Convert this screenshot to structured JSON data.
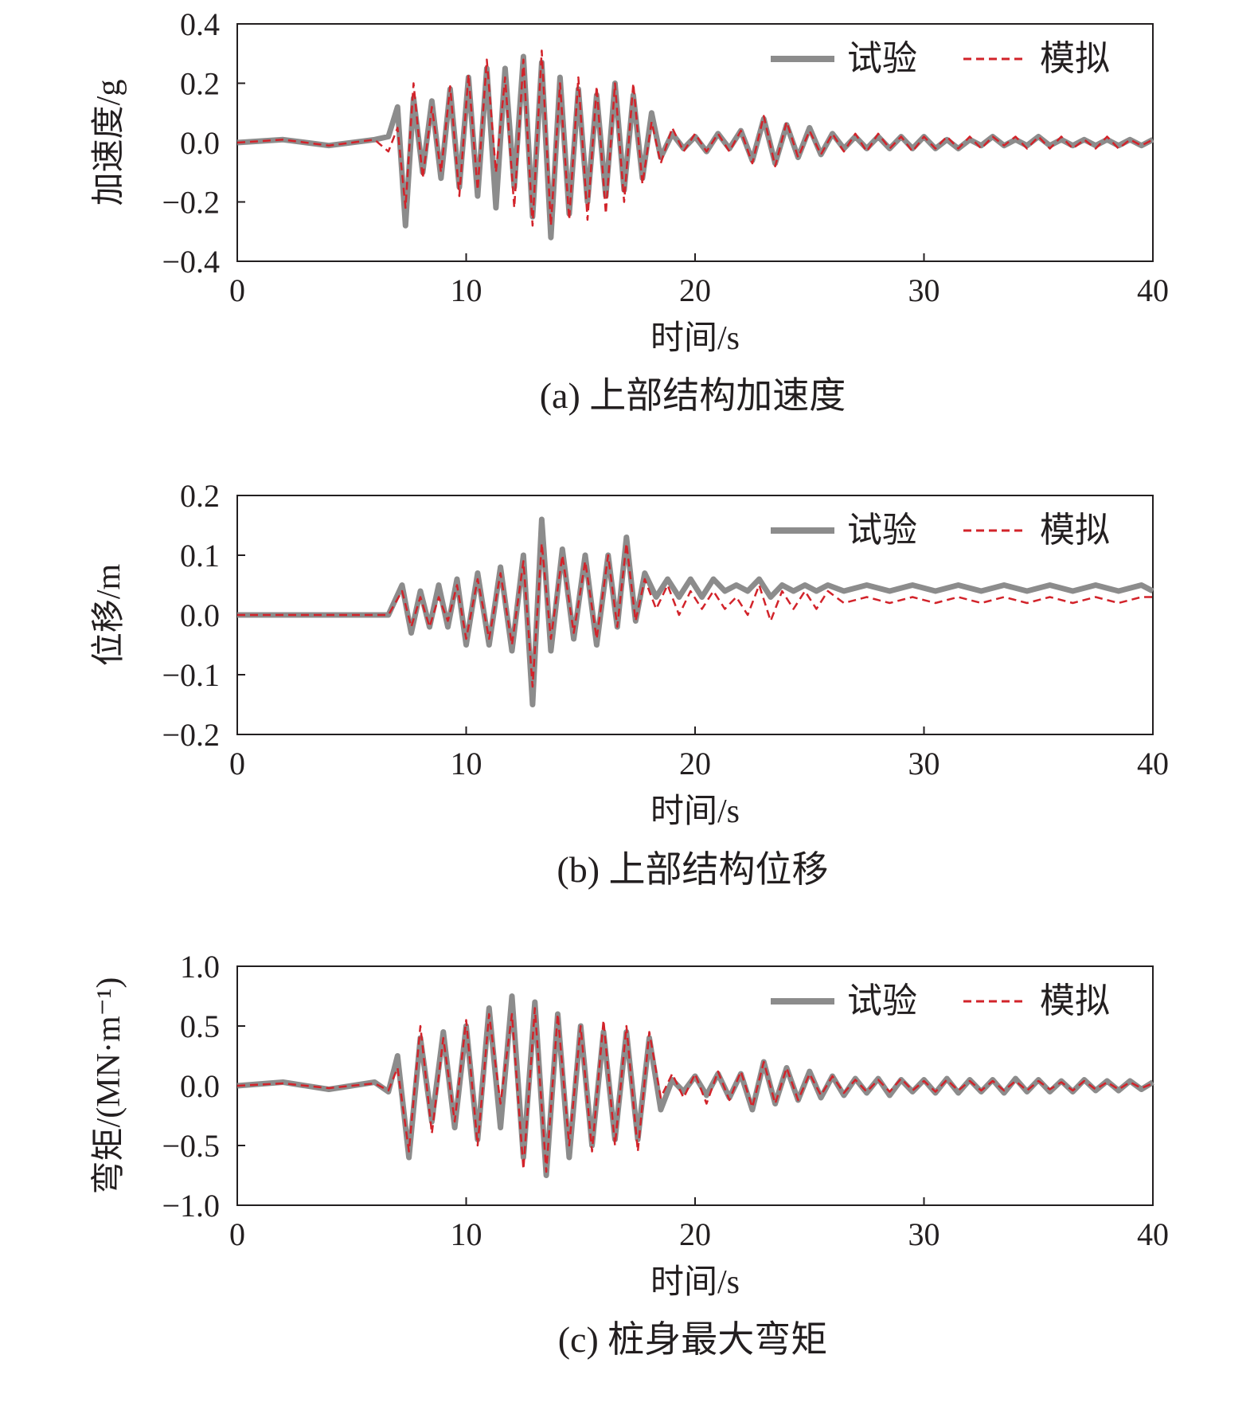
{
  "colors": {
    "experiment": "#8c8c8c",
    "simulation": "#d2232a",
    "axis": "#231f20"
  },
  "legend": {
    "experiment": "试验",
    "simulation": "模拟"
  },
  "chart_data": [
    {
      "id": "a",
      "type": "line",
      "caption": "(a) 上部结构加速度",
      "xlabel": "时间/s",
      "ylabel": "加速度/g",
      "xlim": [
        0,
        40
      ],
      "ylim": [
        -0.4,
        0.4
      ],
      "xticks": [
        "0",
        "10",
        "20",
        "30",
        "40"
      ],
      "yticks": [
        "−0.4",
        "−0.2",
        "0.0",
        "0.2",
        "0.4"
      ],
      "legend_position": "top-right",
      "series": [
        {
          "name": "试验",
          "x": [
            0,
            2,
            4,
            6,
            6.6,
            7.0,
            7.35,
            7.7,
            8.1,
            8.5,
            8.9,
            9.3,
            9.7,
            10.1,
            10.5,
            10.9,
            11.3,
            11.7,
            12.1,
            12.5,
            12.9,
            13.3,
            13.7,
            14.1,
            14.5,
            14.9,
            15.3,
            15.7,
            16.1,
            16.5,
            16.9,
            17.3,
            17.7,
            18.1,
            18.5,
            19,
            19.5,
            20,
            20.5,
            21,
            21.5,
            22,
            22.5,
            23,
            23.5,
            24,
            24.5,
            25,
            25.5,
            26,
            26.5,
            27,
            27.5,
            28,
            28.5,
            29,
            29.5,
            30,
            30.5,
            31,
            31.5,
            32,
            32.5,
            33,
            33.5,
            34,
            34.5,
            35,
            35.5,
            36,
            36.5,
            37,
            37.5,
            38,
            38.5,
            39,
            39.5,
            40
          ],
          "values": [
            0,
            0.01,
            -0.01,
            0.01,
            0.02,
            0.12,
            -0.28,
            0.15,
            -0.1,
            0.14,
            -0.12,
            0.18,
            -0.15,
            0.22,
            -0.18,
            0.25,
            -0.22,
            0.25,
            -0.15,
            0.29,
            -0.25,
            0.27,
            -0.32,
            0.22,
            -0.24,
            0.18,
            -0.2,
            0.16,
            -0.18,
            0.2,
            -0.16,
            0.16,
            -0.12,
            0.1,
            -0.05,
            0.03,
            -0.02,
            0.02,
            -0.03,
            0.03,
            -0.02,
            0.04,
            -0.06,
            0.08,
            -0.07,
            0.06,
            -0.05,
            0.05,
            -0.04,
            0.03,
            -0.02,
            0.02,
            -0.02,
            0.02,
            -0.02,
            0.02,
            -0.02,
            0.02,
            -0.02,
            0.01,
            -0.02,
            0.01,
            -0.01,
            0.02,
            -0.01,
            0.01,
            -0.01,
            0.02,
            -0.01,
            0.01,
            -0.01,
            0.01,
            -0.01,
            0.01,
            -0.01,
            0.01,
            -0.01,
            0.01
          ]
        },
        {
          "name": "模拟",
          "x": [
            0,
            2,
            4,
            6,
            6.6,
            7.0,
            7.35,
            7.7,
            8.1,
            8.5,
            8.9,
            9.3,
            9.7,
            10.1,
            10.5,
            10.9,
            11.3,
            11.7,
            12.1,
            12.5,
            12.9,
            13.3,
            13.7,
            14.1,
            14.5,
            14.9,
            15.3,
            15.7,
            16.1,
            16.5,
            16.9,
            17.3,
            17.7,
            18.1,
            18.5,
            19,
            19.5,
            20,
            20.5,
            21,
            21.5,
            22,
            22.5,
            23,
            23.5,
            24,
            24.5,
            25,
            25.5,
            26,
            26.5,
            27,
            27.5,
            28,
            28.5,
            29,
            29.5,
            30,
            30.5,
            31,
            31.5,
            32,
            32.5,
            33,
            33.5,
            34,
            34.5,
            35,
            35.5,
            36,
            36.5,
            37,
            37.5,
            38,
            38.5,
            39,
            39.5,
            40
          ],
          "values": [
            0,
            0.01,
            -0.01,
            0.01,
            -0.03,
            0.05,
            -0.22,
            0.2,
            -0.12,
            0.12,
            -0.1,
            0.19,
            -0.18,
            0.23,
            -0.16,
            0.28,
            -0.1,
            0.22,
            -0.22,
            0.28,
            -0.28,
            0.31,
            -0.28,
            0.2,
            -0.26,
            0.22,
            -0.26,
            0.19,
            -0.24,
            0.2,
            -0.2,
            0.2,
            -0.14,
            0.07,
            -0.07,
            0.05,
            -0.03,
            0.03,
            -0.03,
            0.03,
            -0.03,
            0.04,
            -0.07,
            0.09,
            -0.08,
            0.07,
            -0.05,
            0.04,
            -0.04,
            0.03,
            -0.03,
            0.03,
            -0.03,
            0.03,
            -0.02,
            0.02,
            -0.03,
            0.02,
            -0.02,
            0.02,
            -0.02,
            0.02,
            -0.02,
            0.02,
            -0.01,
            0.02,
            -0.02,
            0.02,
            -0.02,
            0.02,
            -0.02,
            0.01,
            -0.02,
            0.02,
            -0.02,
            0.01,
            -0.01,
            0.01
          ]
        }
      ]
    },
    {
      "id": "b",
      "type": "line",
      "caption": "(b) 上部结构位移",
      "xlabel": "时间/s",
      "ylabel": "位移/m",
      "xlim": [
        0,
        40
      ],
      "ylim": [
        -0.2,
        0.2
      ],
      "xticks": [
        "0",
        "10",
        "20",
        "30",
        "40"
      ],
      "yticks": [
        "−0.2",
        "−0.1",
        "0.0",
        "0.1",
        "0.2"
      ],
      "legend_position": "top-right",
      "series": [
        {
          "name": "试验",
          "x": [
            0,
            2,
            4,
            6,
            6.6,
            7.2,
            7.6,
            8.0,
            8.4,
            8.8,
            9.2,
            9.6,
            10.0,
            10.5,
            11.0,
            11.5,
            12.0,
            12.5,
            12.9,
            13.3,
            13.7,
            14.2,
            14.7,
            15.2,
            15.7,
            16.2,
            16.6,
            17.0,
            17.4,
            17.8,
            18.3,
            18.8,
            19.3,
            19.8,
            20.3,
            20.8,
            21.3,
            21.8,
            22.3,
            22.8,
            23.3,
            23.8,
            24.3,
            24.8,
            25.3,
            25.8,
            26.5,
            27.5,
            28.5,
            29.5,
            30.5,
            31.5,
            32.5,
            33.5,
            34.5,
            35.5,
            36.5,
            37.5,
            38.5,
            39.5,
            40
          ],
          "values": [
            0,
            0.0,
            0.0,
            0.0,
            0.0,
            0.05,
            -0.03,
            0.04,
            -0.02,
            0.05,
            -0.02,
            0.06,
            -0.05,
            0.07,
            -0.05,
            0.08,
            -0.06,
            0.1,
            -0.15,
            0.16,
            -0.06,
            0.11,
            -0.04,
            0.1,
            -0.05,
            0.1,
            -0.02,
            0.13,
            -0.01,
            0.07,
            0.03,
            0.06,
            0.03,
            0.06,
            0.03,
            0.06,
            0.04,
            0.05,
            0.04,
            0.06,
            0.03,
            0.05,
            0.04,
            0.05,
            0.04,
            0.05,
            0.04,
            0.05,
            0.04,
            0.05,
            0.04,
            0.05,
            0.04,
            0.05,
            0.04,
            0.05,
            0.04,
            0.05,
            0.04,
            0.05,
            0.04
          ]
        },
        {
          "name": "模拟",
          "x": [
            0,
            2,
            4,
            6,
            6.6,
            7.2,
            7.6,
            8.0,
            8.4,
            8.8,
            9.2,
            9.6,
            10.0,
            10.5,
            11.0,
            11.5,
            12.0,
            12.5,
            12.9,
            13.3,
            13.7,
            14.2,
            14.7,
            15.2,
            15.7,
            16.2,
            16.6,
            17.0,
            17.4,
            17.8,
            18.3,
            18.8,
            19.3,
            19.8,
            20.3,
            20.8,
            21.3,
            21.8,
            22.3,
            22.8,
            23.3,
            23.8,
            24.3,
            24.8,
            25.3,
            25.8,
            26.5,
            27.5,
            28.5,
            29.5,
            30.5,
            31.5,
            32.5,
            33.5,
            34.5,
            35.5,
            36.5,
            37.5,
            38.5,
            39.5,
            40
          ],
          "values": [
            0,
            0.0,
            0.0,
            0.0,
            0.0,
            0.04,
            -0.02,
            0.03,
            -0.02,
            0.03,
            -0.01,
            0.05,
            -0.04,
            0.06,
            -0.04,
            0.07,
            -0.05,
            0.09,
            -0.12,
            0.12,
            -0.04,
            0.1,
            -0.03,
            0.09,
            -0.04,
            0.1,
            -0.02,
            0.12,
            -0.01,
            0.06,
            0.01,
            0.05,
            0.0,
            0.04,
            0.01,
            0.04,
            0.01,
            0.03,
            0.0,
            0.05,
            -0.01,
            0.04,
            0.01,
            0.04,
            0.01,
            0.04,
            0.02,
            0.03,
            0.02,
            0.03,
            0.02,
            0.03,
            0.02,
            0.03,
            0.02,
            0.03,
            0.02,
            0.03,
            0.02,
            0.03,
            0.03
          ]
        }
      ]
    },
    {
      "id": "c",
      "type": "line",
      "caption": "(c) 桩身最大弯矩",
      "xlabel": "时间/s",
      "ylabel": "弯矩/(MN·m⁻¹)",
      "xlim": [
        0,
        40
      ],
      "ylim": [
        -1.0,
        1.0
      ],
      "xticks": [
        "0",
        "10",
        "20",
        "30",
        "40"
      ],
      "yticks": [
        "−1.0",
        "−0.5",
        "0.0",
        "0.5",
        "1.0"
      ],
      "legend_position": "top-right",
      "series": [
        {
          "name": "试验",
          "x": [
            0,
            2,
            4,
            6,
            6.6,
            7.0,
            7.5,
            8.0,
            8.5,
            9.0,
            9.5,
            10.0,
            10.5,
            11.0,
            11.5,
            12.0,
            12.5,
            13.0,
            13.5,
            14.0,
            14.5,
            15.0,
            15.5,
            16.0,
            16.5,
            17.0,
            17.5,
            18.0,
            18.5,
            19,
            19.5,
            20,
            20.5,
            21,
            21.5,
            22,
            22.5,
            23,
            23.5,
            24,
            24.5,
            25,
            25.5,
            26,
            26.5,
            27,
            27.5,
            28,
            28.5,
            29,
            29.5,
            30,
            30.5,
            31,
            31.5,
            32,
            32.5,
            33,
            33.5,
            34,
            34.5,
            35,
            35.5,
            36,
            36.5,
            37,
            37.5,
            38,
            38.5,
            39,
            39.5,
            40
          ],
          "values": [
            0,
            0.03,
            -0.03,
            0.03,
            -0.05,
            0.25,
            -0.6,
            0.4,
            -0.3,
            0.45,
            -0.35,
            0.5,
            -0.45,
            0.65,
            -0.35,
            0.75,
            -0.6,
            0.7,
            -0.75,
            0.6,
            -0.6,
            0.5,
            -0.5,
            0.45,
            -0.45,
            0.45,
            -0.45,
            0.4,
            -0.2,
            0.05,
            -0.05,
            0.08,
            -0.08,
            0.1,
            -0.1,
            0.1,
            -0.2,
            0.2,
            -0.15,
            0.15,
            -0.12,
            0.12,
            -0.1,
            0.08,
            -0.08,
            0.06,
            -0.06,
            0.06,
            -0.08,
            0.05,
            -0.05,
            0.05,
            -0.06,
            0.06,
            -0.06,
            0.05,
            -0.05,
            0.05,
            -0.06,
            0.06,
            -0.05,
            0.05,
            -0.05,
            0.04,
            -0.05,
            0.05,
            -0.04,
            0.04,
            -0.04,
            0.04,
            -0.03,
            0.03
          ]
        },
        {
          "name": "模拟",
          "x": [
            0,
            2,
            4,
            6,
            6.6,
            7.0,
            7.5,
            8.0,
            8.5,
            9.0,
            9.5,
            10.0,
            10.5,
            11.0,
            11.5,
            12.0,
            12.5,
            13.0,
            13.5,
            14.0,
            14.5,
            15.0,
            15.5,
            16.0,
            16.5,
            17.0,
            17.5,
            18.0,
            18.5,
            19,
            19.5,
            20,
            20.5,
            21,
            21.5,
            22,
            22.5,
            23,
            23.5,
            24,
            24.5,
            25,
            25.5,
            26,
            26.5,
            27,
            27.5,
            28,
            28.5,
            29,
            29.5,
            30,
            30.5,
            31,
            31.5,
            32,
            32.5,
            33,
            33.5,
            34,
            34.5,
            35,
            35.5,
            36,
            36.5,
            37,
            37.5,
            38,
            38.5,
            39,
            39.5,
            40
          ],
          "values": [
            0,
            0.02,
            -0.02,
            0.02,
            -0.04,
            0.15,
            -0.55,
            0.5,
            -0.4,
            0.4,
            -0.3,
            0.55,
            -0.5,
            0.6,
            -0.15,
            0.6,
            -0.7,
            0.65,
            -0.72,
            0.6,
            -0.5,
            0.5,
            -0.55,
            0.55,
            -0.5,
            0.5,
            -0.55,
            0.45,
            -0.1,
            0.1,
            -0.1,
            0.1,
            -0.15,
            0.12,
            -0.12,
            0.12,
            -0.18,
            0.2,
            -0.15,
            0.15,
            -0.12,
            0.1,
            -0.08,
            0.08,
            -0.06,
            0.05,
            -0.05,
            0.05,
            -0.05,
            0.06,
            -0.04,
            0.04,
            -0.05,
            0.05,
            -0.04,
            0.04,
            -0.04,
            0.04,
            -0.04,
            0.04,
            -0.04,
            0.04,
            -0.03,
            0.03,
            -0.04,
            0.04,
            -0.03,
            0.03,
            -0.03,
            0.03,
            -0.02,
            0.02
          ]
        }
      ]
    }
  ]
}
